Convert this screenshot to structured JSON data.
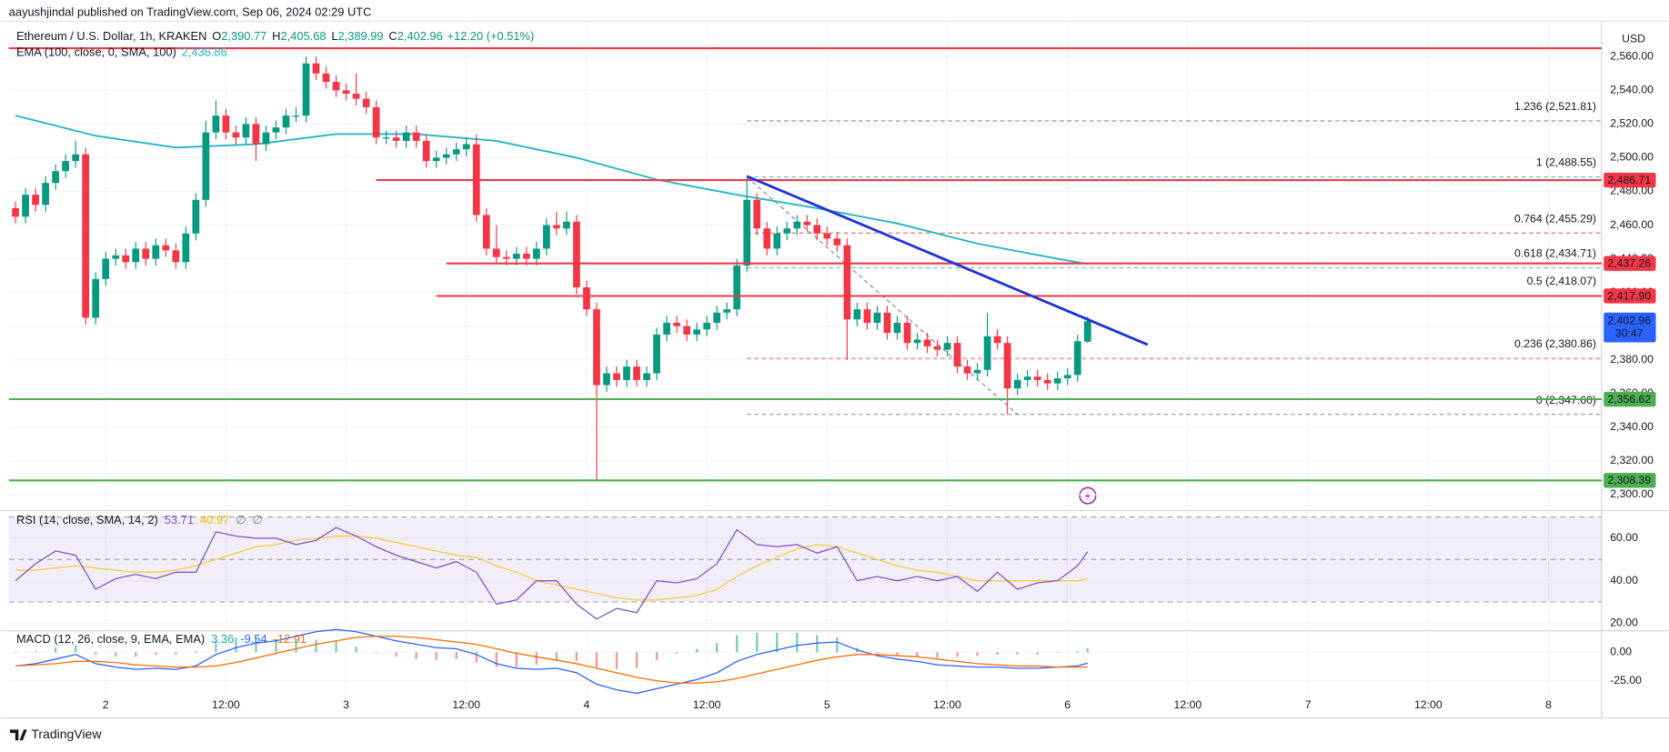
{
  "chart_data": {
    "type": "candlestick",
    "published": "aayushjindal published on TradingView.com, Sep 06, 2024 02:29 UTC",
    "title": "Ethereum / U.S. Dollar, 1h, KRAKEN",
    "ohlc_legend": [
      {
        "key": "O",
        "label": "2,390.77"
      },
      {
        "key": "H",
        "label": "2,405.68"
      },
      {
        "key": "L",
        "label": "2,389.99"
      },
      {
        "key": "C",
        "label": "2,402.96"
      }
    ],
    "change": "+12.20 (+0.51%)",
    "currency": "USD",
    "brand": "TradingView",
    "up_color": "#089981",
    "down_color": "#f23645",
    "grid": true,
    "xlim": [
      14.34,
      173.3
    ],
    "xticks": [
      {
        "value": 24,
        "label": "2"
      },
      {
        "value": 36,
        "label": "12:00"
      },
      {
        "value": 48,
        "label": "3"
      },
      {
        "value": 60,
        "label": "12:00"
      },
      {
        "value": 72,
        "label": "4"
      },
      {
        "value": 84,
        "label": "12:00"
      },
      {
        "value": 96,
        "label": "5"
      },
      {
        "value": 108,
        "label": "12:00"
      },
      {
        "value": 120,
        "label": "6"
      },
      {
        "value": 132,
        "label": "12:00"
      },
      {
        "value": 144,
        "label": "7"
      },
      {
        "value": 156,
        "label": "12:00"
      },
      {
        "value": 168,
        "label": "8"
      }
    ],
    "ylim": [
      2290.5,
      2581
    ],
    "yticks": [
      {
        "value": 2300,
        "label": "2,300.00"
      },
      {
        "value": 2320,
        "label": "2,320.00"
      },
      {
        "value": 2340,
        "label": "2,340.00"
      },
      {
        "value": 2360,
        "label": "2,360.00"
      },
      {
        "value": 2380,
        "label": "2,380.00"
      },
      {
        "value": 2400,
        "label": "2,400.00"
      },
      {
        "value": 2420,
        "label": "2,420.00"
      },
      {
        "value": 2440,
        "label": "2,440.00"
      },
      {
        "value": 2460,
        "label": "2,460.00"
      },
      {
        "value": 2480,
        "label": "2,480.00"
      },
      {
        "value": 2500,
        "label": "2,500.00"
      },
      {
        "value": 2520,
        "label": "2,520.00"
      },
      {
        "value": 2540,
        "label": "2,540.00"
      },
      {
        "value": 2560,
        "label": "2,560.00"
      }
    ],
    "x": [
      15,
      16,
      17,
      18,
      19,
      20,
      21,
      22,
      23,
      24,
      25,
      26,
      27,
      28,
      29,
      30,
      31,
      32,
      33,
      34,
      35,
      36,
      37,
      38,
      39,
      40,
      41,
      42,
      43,
      44,
      45,
      46,
      47,
      48,
      49,
      50,
      51,
      52,
      53,
      54,
      55,
      56,
      57,
      58,
      59,
      60,
      61,
      62,
      63,
      64,
      65,
      66,
      67,
      68,
      69,
      70,
      71,
      72,
      73,
      74,
      75,
      76,
      77,
      78,
      79,
      80,
      81,
      82,
      83,
      84,
      85,
      86,
      87,
      88,
      89,
      90,
      91,
      92,
      93,
      94,
      95,
      96,
      97,
      98,
      99,
      100,
      101,
      102,
      103,
      104,
      105,
      106,
      107,
      108,
      109,
      110,
      111,
      112,
      113,
      114,
      115,
      116,
      117,
      118,
      119,
      120,
      121,
      122
    ],
    "open": [
      2470,
      2465,
      2478,
      2472,
      2485,
      2492,
      2498,
      2502,
      2405,
      2428,
      2440,
      2442,
      2438,
      2446,
      2440,
      2448,
      2445,
      2438,
      2455,
      2475,
      2515,
      2525,
      2515,
      2512,
      2520,
      2508,
      2515,
      2518,
      2525,
      2525,
      2556,
      2550,
      2545,
      2540,
      2538,
      2535,
      2530,
      2512,
      2512,
      2510,
      2515,
      2510,
      2498,
      2500,
      2502,
      2505,
      2508,
      2466,
      2446,
      2441,
      2440,
      2443,
      2440,
      2446,
      2460,
      2458,
      2462,
      2423,
      2410,
      2365,
      2372,
      2368,
      2376,
      2368,
      2372,
      2395,
      2402,
      2400,
      2395,
      2398,
      2402,
      2408,
      2410,
      2436,
      2475,
      2458,
      2446,
      2455,
      2458,
      2462,
      2460,
      2455,
      2452,
      2448,
      2404,
      2410,
      2402,
      2408,
      2396,
      2402,
      2390,
      2392,
      2388,
      2386,
      2390,
      2376,
      2372,
      2374,
      2394,
      2390,
      2363,
      2368,
      2370,
      2368,
      2366,
      2369,
      2371,
      2390.77
    ],
    "high": [
      2474,
      2482,
      2482,
      2489,
      2496,
      2502,
      2510,
      2506,
      2432,
      2444,
      2446,
      2446,
      2450,
      2450,
      2452,
      2452,
      2449,
      2459,
      2479,
      2522,
      2534,
      2529,
      2519,
      2524,
      2524,
      2519,
      2522,
      2529,
      2530,
      2560,
      2560,
      2554,
      2549,
      2544,
      2550,
      2539,
      2534,
      2516,
      2516,
      2519,
      2519,
      2514,
      2504,
      2506,
      2509,
      2512,
      2514,
      2470,
      2460,
      2445,
      2447,
      2447,
      2450,
      2464,
      2468,
      2468,
      2466,
      2427,
      2414,
      2376,
      2376,
      2380,
      2380,
      2376,
      2399,
      2406,
      2406,
      2404,
      2402,
      2406,
      2412,
      2414,
      2440,
      2488,
      2479,
      2462,
      2459,
      2462,
      2466,
      2466,
      2464,
      2459,
      2456,
      2452,
      2414,
      2414,
      2412,
      2412,
      2406,
      2406,
      2396,
      2396,
      2392,
      2394,
      2394,
      2380,
      2378,
      2408,
      2398,
      2394,
      2372,
      2374,
      2374,
      2372,
      2373,
      2375,
      2395,
      2405.68
    ],
    "low": [
      2461,
      2461,
      2468,
      2468,
      2481,
      2488,
      2494,
      2401,
      2401,
      2424,
      2436,
      2434,
      2434,
      2436,
      2436,
      2441,
      2434,
      2434,
      2451,
      2471,
      2511,
      2511,
      2508,
      2508,
      2498,
      2504,
      2511,
      2514,
      2521,
      2521,
      2546,
      2541,
      2536,
      2534,
      2531,
      2526,
      2508,
      2508,
      2506,
      2506,
      2506,
      2494,
      2494,
      2496,
      2498,
      2501,
      2462,
      2442,
      2437,
      2436,
      2436,
      2436,
      2436,
      2442,
      2454,
      2454,
      2419,
      2406,
      2309,
      2361,
      2364,
      2364,
      2364,
      2364,
      2368,
      2391,
      2396,
      2391,
      2391,
      2394,
      2398,
      2404,
      2406,
      2432,
      2454,
      2442,
      2442,
      2451,
      2454,
      2456,
      2451,
      2448,
      2444,
      2380,
      2400,
      2398,
      2398,
      2392,
      2392,
      2386,
      2386,
      2384,
      2382,
      2382,
      2372,
      2368,
      2368,
      2370,
      2386,
      2347.6,
      2359,
      2364,
      2364,
      2362,
      2362,
      2365,
      2367,
      2389.99
    ],
    "close": [
      2465,
      2478,
      2472,
      2485,
      2492,
      2498,
      2502,
      2405,
      2428,
      2440,
      2442,
      2438,
      2446,
      2440,
      2448,
      2445,
      2438,
      2455,
      2475,
      2515,
      2525,
      2515,
      2512,
      2520,
      2508,
      2515,
      2518,
      2525,
      2525,
      2556,
      2550,
      2545,
      2540,
      2538,
      2535,
      2530,
      2512,
      2512,
      2510,
      2515,
      2510,
      2498,
      2500,
      2502,
      2505,
      2508,
      2466,
      2446,
      2441,
      2440,
      2443,
      2440,
      2446,
      2460,
      2458,
      2462,
      2423,
      2410,
      2365,
      2372,
      2368,
      2376,
      2368,
      2372,
      2395,
      2402,
      2400,
      2395,
      2398,
      2402,
      2408,
      2410,
      2436,
      2475,
      2458,
      2446,
      2455,
      2458,
      2462,
      2460,
      2455,
      2452,
      2448,
      2404,
      2410,
      2402,
      2408,
      2396,
      2402,
      2390,
      2392,
      2388,
      2386,
      2390,
      2376,
      2372,
      2374,
      2394,
      2390,
      2363,
      2368,
      2370,
      2368,
      2366,
      2369,
      2371,
      2391,
      2402.96
    ],
    "last_price": {
      "label": "2,402.96",
      "countdown": "30:47",
      "color": "#2962ff"
    },
    "ema": {
      "name": "EMA (100, close, 0, SMA, 100)",
      "value_label": "2,436.86",
      "color": "#22b4c8",
      "x": [
        15,
        23,
        31,
        39,
        47,
        55,
        63,
        71,
        79,
        87,
        95,
        103,
        111,
        119,
        122
      ],
      "values": [
        2525,
        2513,
        2506,
        2508,
        2514,
        2514,
        2510,
        2500,
        2487,
        2478,
        2470,
        2461,
        2449,
        2440,
        2436.86
      ]
    },
    "levels": [
      {
        "value": 2565,
        "color": "#f23645"
      },
      {
        "value": 2486.71,
        "label": "2,486.71",
        "color": "#f23645",
        "x_start": 51
      },
      {
        "value": 2437.26,
        "label": "2,437.26",
        "color": "#f23645",
        "x_start": 58
      },
      {
        "value": 2417.9,
        "label": "2,417.90",
        "color": "#f23645",
        "x_start": 57
      },
      {
        "value": 2356.62,
        "label": "2,356.62",
        "color": "#4caf50"
      },
      {
        "value": 2308.39,
        "label": "2,308.39",
        "color": "#4caf50"
      }
    ],
    "trendline": {
      "x": [
        88,
        128
      ],
      "values": [
        2489,
        2389
      ],
      "color": "#1f32d8"
    },
    "fib": {
      "x_start": 88,
      "anchor_x": [
        88,
        115
      ],
      "levels": [
        {
          "label": "1.236 (2,521.81)",
          "value": 2521.81,
          "color": "#9c27b0"
        },
        {
          "label": "1 (2,488.55)",
          "value": 2488.55,
          "color": "#2196c8"
        },
        {
          "label": "0.764 (2,455.29)",
          "value": 2455.29,
          "color": "#c62828"
        },
        {
          "label": "0.618 (2,434.71)",
          "value": 2434.71,
          "color": "#26a69a"
        },
        {
          "label": "0.5 (2,418.07)",
          "value": 2418.07,
          "color": "#b71c1c"
        },
        {
          "label": "0.236 (2,380.86)",
          "value": 2380.86,
          "color": "#e53935"
        },
        {
          "label": "0 (2,347.60)",
          "value": 2347.6,
          "color": "#787b86"
        }
      ]
    },
    "rsi": {
      "name": "RSI (14, close, SMA, 14, 2)",
      "legend_values": [
        {
          "label": "53.71",
          "color": "#7e57c2"
        },
        {
          "label": "40.97",
          "color": "#e6c200"
        },
        {
          "label": "∅",
          "color": "#787b86"
        },
        {
          "label": "∅",
          "color": "#787b86"
        }
      ],
      "color": "#7e57c2",
      "ma_color": "#f5cc3a",
      "ylim": [
        17,
        73
      ],
      "yticks": [
        {
          "value": 20,
          "label": "20.00"
        },
        {
          "value": 40,
          "label": "40.00"
        },
        {
          "value": 60,
          "label": "60.00"
        }
      ],
      "band": [
        30,
        70
      ],
      "mid": 50,
      "x": [
        15,
        17,
        19,
        21,
        23,
        25,
        27,
        29,
        31,
        33,
        35,
        37,
        39,
        41,
        43,
        45,
        47,
        49,
        51,
        53,
        55,
        57,
        59,
        61,
        63,
        65,
        67,
        69,
        71,
        73,
        75,
        77,
        79,
        81,
        83,
        85,
        87,
        89,
        91,
        93,
        95,
        97,
        99,
        101,
        103,
        105,
        107,
        109,
        111,
        113,
        115,
        117,
        119,
        121,
        122
      ],
      "values": [
        40,
        48,
        54,
        52,
        36,
        41,
        43,
        41,
        44,
        44,
        63,
        61,
        60,
        60,
        57,
        59,
        65,
        61,
        56,
        52,
        49,
        46,
        49,
        44,
        29,
        31,
        40,
        40,
        29,
        22,
        27,
        25,
        40,
        39,
        41,
        48,
        64,
        57,
        56,
        57,
        53,
        56,
        40,
        42,
        40,
        42,
        40,
        42,
        35,
        44,
        36,
        39,
        40,
        47,
        53.71
      ],
      "ma": [
        45,
        45,
        46,
        47,
        46,
        45,
        44,
        44,
        45,
        47,
        50,
        53,
        56,
        57,
        59,
        60,
        61,
        61,
        60,
        58,
        56,
        54,
        52,
        51,
        47,
        44,
        40,
        38,
        36,
        34,
        32,
        31,
        31,
        32,
        33,
        36,
        42,
        47,
        51,
        55,
        57,
        56,
        53,
        50,
        47,
        45,
        44,
        42,
        40,
        40,
        40,
        40,
        40,
        40,
        40.97
      ]
    },
    "macd": {
      "name": "MACD (12, 26, close, 9, EMA, EMA)",
      "legend_values": [
        {
          "label": "3.36",
          "color": "#26a69a"
        },
        {
          "label": "-9.54",
          "color": "#2962ff"
        },
        {
          "label": "-12.91",
          "color": "#ff6d00"
        }
      ],
      "color": "#2962ff",
      "signal_color": "#ff6d00",
      "hist_up": "#26a69a",
      "hist_down": "#ef5350",
      "ylim": [
        -39,
        17
      ],
      "yticks": [
        {
          "value": 0,
          "label": "0.00"
        },
        {
          "value": -25,
          "label": "-25.00"
        }
      ],
      "macd": [
        -12,
        -10,
        -6,
        -2,
        -10,
        -13,
        -15,
        -14,
        -15,
        -12,
        -2,
        4,
        8,
        10,
        14,
        18,
        20,
        18,
        14,
        10,
        7,
        4,
        3,
        -2,
        -10,
        -14,
        -15,
        -14,
        -18,
        -28,
        -33,
        -36,
        -32,
        -28,
        -24,
        -18,
        -8,
        -2,
        2,
        6,
        8,
        9,
        2,
        -3,
        -6,
        -8,
        -11,
        -12,
        -13,
        -13,
        -14,
        -14,
        -13,
        -12,
        -9.54
      ],
      "signal": [
        -12,
        -11,
        -10,
        -8,
        -8,
        -9,
        -11,
        -12,
        -13,
        -13,
        -12,
        -9,
        -5,
        -1,
        3,
        7,
        10,
        13,
        14,
        14,
        13,
        11,
        9,
        7,
        3,
        -1,
        -4,
        -7,
        -10,
        -14,
        -18,
        -22,
        -25,
        -27,
        -27,
        -26,
        -23,
        -19,
        -15,
        -11,
        -7,
        -4,
        -2,
        -2,
        -3,
        -4,
        -6,
        -8,
        -10,
        -11,
        -12,
        -12,
        -13,
        -13,
        -12.91
      ],
      "hist": [
        0,
        1,
        4,
        6,
        -2,
        -4,
        -4,
        -2,
        -2,
        1,
        10,
        13,
        13,
        11,
        11,
        11,
        10,
        5,
        0,
        -4,
        -6,
        -7,
        -6,
        -9,
        -13,
        -13,
        -11,
        -7,
        -8,
        -14,
        -15,
        -14,
        -7,
        -1,
        3,
        8,
        15,
        17,
        17,
        17,
        15,
        13,
        4,
        -1,
        -3,
        -4,
        -5,
        -4,
        -3,
        -2,
        -2,
        -2,
        0,
        1,
        3.36
      ]
    }
  }
}
